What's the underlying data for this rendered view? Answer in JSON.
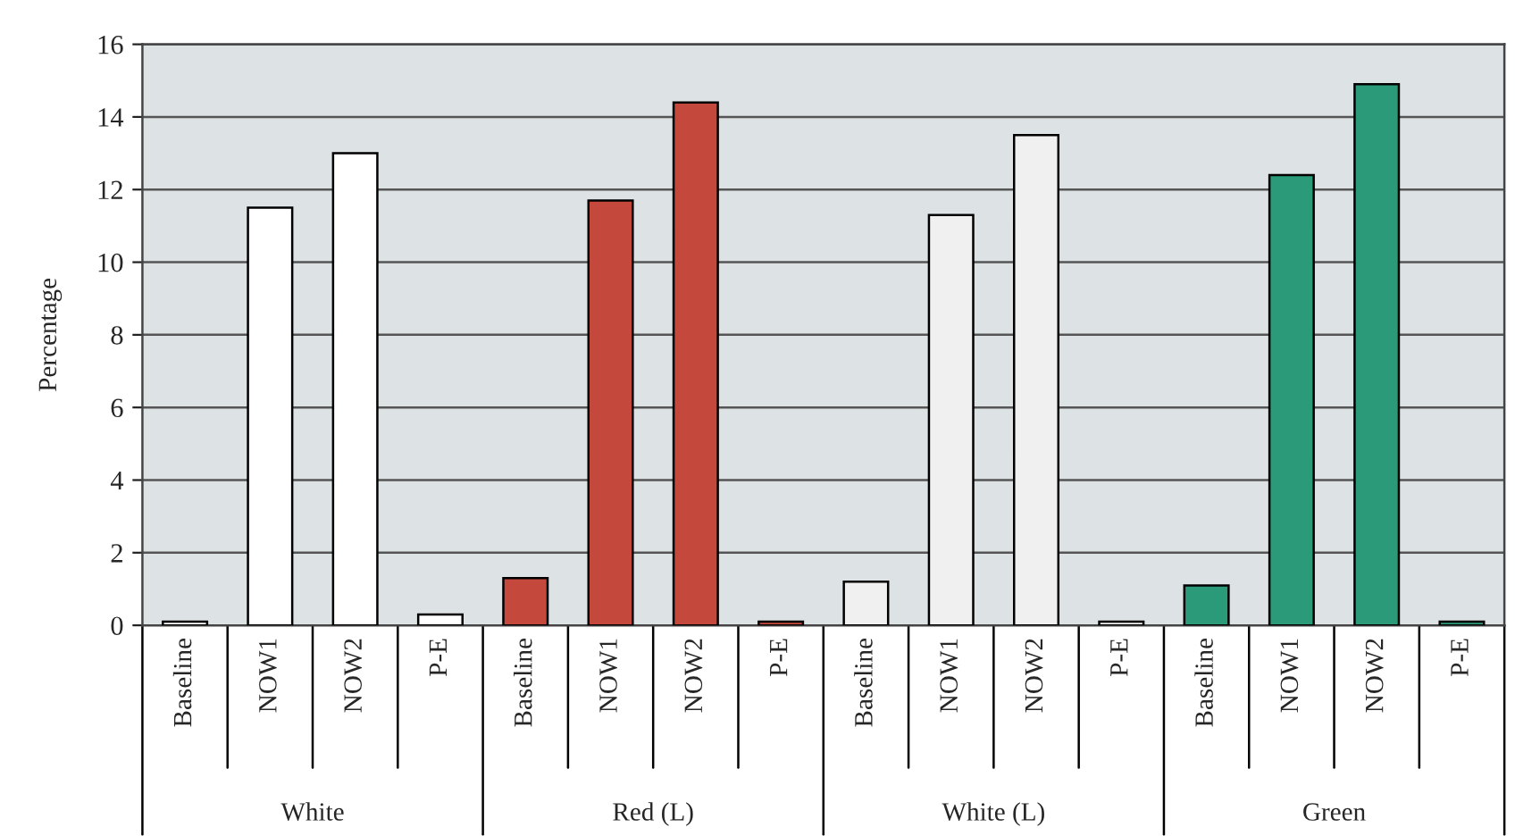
{
  "chart_data": {
    "type": "bar",
    "ylabel": "Percentage",
    "categories": [
      "White",
      "Red (L)",
      "White (L)",
      "Green"
    ],
    "series": [
      {
        "name": "Baseline",
        "colors": [
          "#ffffff",
          "#c4483c",
          "#f0f0f0",
          "#2a9a78"
        ],
        "values": [
          0.1,
          1.3,
          1.2,
          1.1
        ]
      },
      {
        "name": "NOW1",
        "colors": [
          "#ffffff",
          "#c4483c",
          "#f0f0f0",
          "#2a9a78"
        ],
        "values": [
          11.5,
          11.7,
          11.3,
          12.4
        ]
      },
      {
        "name": "NOW2",
        "colors": [
          "#ffffff",
          "#c4483c",
          "#f0f0f0",
          "#2a9a78"
        ],
        "values": [
          13.0,
          14.4,
          13.5,
          14.9
        ]
      },
      {
        "name": "P-E",
        "colors": [
          "#ffffff",
          "#c4483c",
          "#f0f0f0",
          "#2a9a78"
        ],
        "values": [
          0.3,
          0.1,
          0.1,
          0.1
        ]
      }
    ],
    "ylim": [
      0,
      16
    ],
    "yticks": [
      0,
      2,
      4,
      6,
      8,
      10,
      12,
      14,
      16
    ],
    "grid": "y"
  }
}
